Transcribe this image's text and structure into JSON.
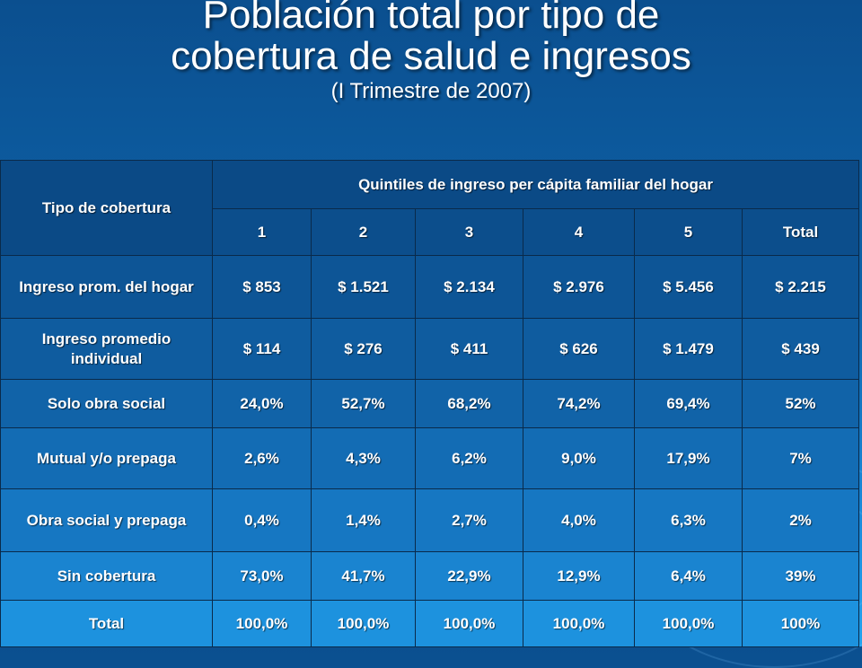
{
  "slide": {
    "title_line1": "Población total por tipo de",
    "title_line2": "cobertura de salud e ingresos",
    "subtitle": "(I Trimestre de 2007)"
  },
  "table": {
    "corner_header": "Tipo de cobertura",
    "group_header": "Quintiles de ingreso per cápita familiar del hogar",
    "columns": [
      "1",
      "2",
      "3",
      "4",
      "5",
      "Total"
    ],
    "rows": [
      {
        "label": "Ingreso prom. del hogar",
        "values": [
          "$ 853",
          "$ 1.521",
          "$ 2.134",
          "$ 2.976",
          "$ 5.456",
          "$ 2.215"
        ]
      },
      {
        "label": "Ingreso promedio individual",
        "values": [
          "$ 114",
          "$ 276",
          "$ 411",
          "$ 626",
          "$ 1.479",
          "$ 439"
        ]
      },
      {
        "label": "Solo obra social",
        "values": [
          "24,0%",
          "52,7%",
          "68,2%",
          "74,2%",
          "69,4%",
          "52%"
        ]
      },
      {
        "label": "Mutual y/o prepaga",
        "values": [
          "2,6%",
          "4,3%",
          "6,2%",
          "9,0%",
          "17,9%",
          "7%"
        ]
      },
      {
        "label": "Obra social y prepaga",
        "values": [
          "0,4%",
          "1,4%",
          "2,7%",
          "4,0%",
          "6,3%",
          "2%"
        ]
      },
      {
        "label": "Sin cobertura",
        "values": [
          "73,0%",
          "41,7%",
          "22,9%",
          "12,9%",
          "6,4%",
          "39%"
        ]
      },
      {
        "label": "Total",
        "values": [
          "100,0%",
          "100,0%",
          "100,0%",
          "100,0%",
          "100,0%",
          "100%"
        ]
      }
    ]
  }
}
